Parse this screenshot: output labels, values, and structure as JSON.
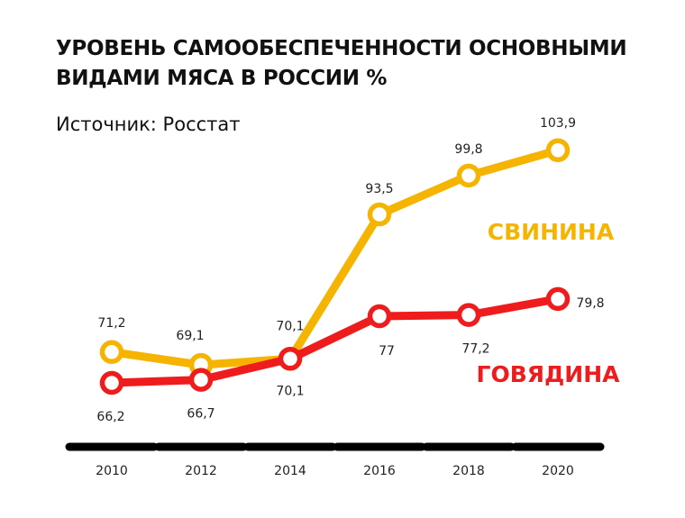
{
  "title": "УРОВЕНЬ САМООБЕСПЕЧЕННОСТИ ОСНОВНЫМИ ВИДАМИ МЯСА В РОССИИ %",
  "source": "Источник: Росстат",
  "colors": {
    "pork": "#F5B400",
    "beef": "#EE1C1C",
    "axis": "#000000"
  },
  "chart_data": {
    "type": "line",
    "title": "УРОВЕНЬ САМООБЕСПЕЧЕННОСТИ ОСНОВНЫМИ ВИДАМИ МЯСА В РОССИИ %",
    "x": [
      "2010",
      "2012",
      "2014",
      "2016",
      "2018",
      "2020"
    ],
    "xlabel": "",
    "ylabel": "",
    "ylim": [
      60,
      110
    ],
    "grid": false,
    "legend": "direct labels at right",
    "series": [
      {
        "name": "СВИНИНА",
        "color": "#F5B400",
        "values": [
          71.2,
          69.1,
          70.1,
          93.5,
          99.8,
          103.9
        ],
        "labels": [
          "71,2",
          "69,1",
          "70,1",
          "93,5",
          "99,8",
          "103,9"
        ]
      },
      {
        "name": "ГОВЯДИНА",
        "color": "#EE1C1C",
        "values": [
          66.2,
          66.7,
          70.1,
          77,
          77.2,
          79.8
        ],
        "labels": [
          "66,2",
          "66,7",
          "70,1",
          "77",
          "77,2",
          "79,8"
        ]
      }
    ]
  }
}
